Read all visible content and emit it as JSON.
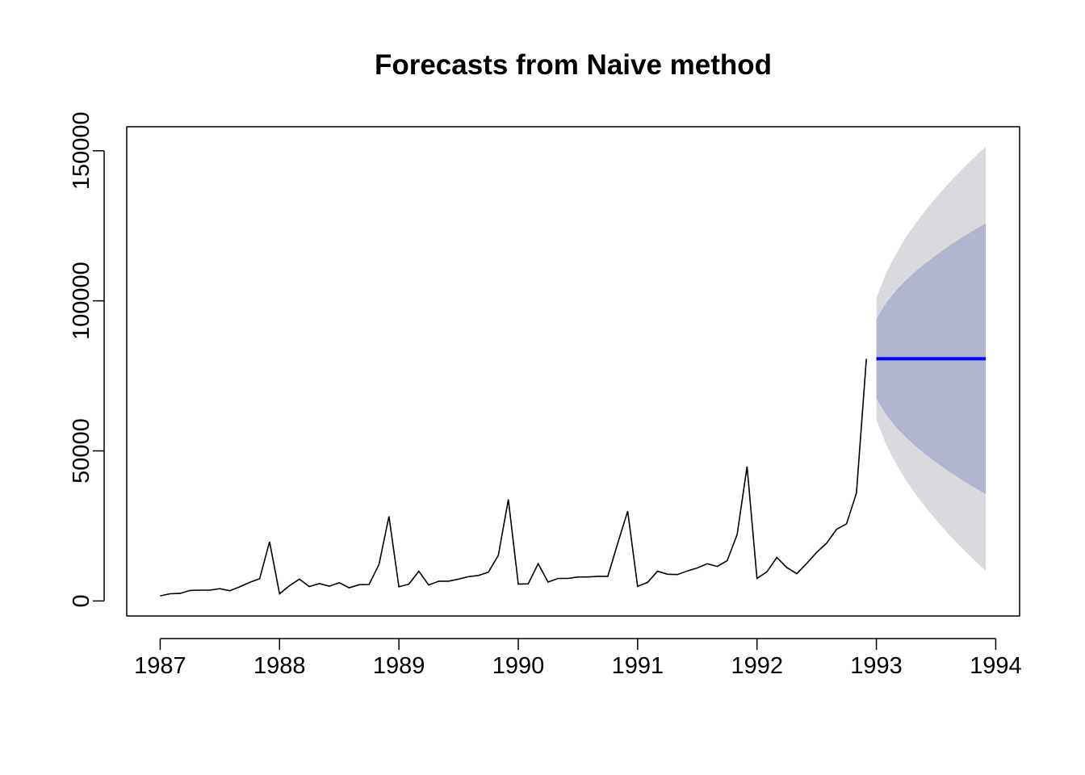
{
  "chart_data": {
    "type": "line",
    "title": "Forecasts from Naive method",
    "xlabel": "",
    "ylabel": "",
    "xlim": [
      1986.72,
      1994.2
    ],
    "ylim": [
      -5000,
      158000
    ],
    "x_ticks": [
      1987,
      1988,
      1989,
      1990,
      1991,
      1992,
      1993,
      1994
    ],
    "x_tick_labels": [
      "1987",
      "1988",
      "1989",
      "1990",
      "1991",
      "1992",
      "1993",
      "1994"
    ],
    "y_ticks": [
      0,
      50000,
      100000,
      150000
    ],
    "y_tick_labels": [
      "0",
      "50000",
      "100000",
      "150000"
    ],
    "grid": false,
    "legend": "none",
    "colors": {
      "history": "#000000",
      "forecast": "#0000ff",
      "band80": "#b1b5cf",
      "band95": "#dadade"
    },
    "series": [
      {
        "role": "history",
        "x_start": 1987.0,
        "step": 0.08333333,
        "values": [
          1700,
          2400,
          2500,
          3500,
          3600,
          3600,
          4100,
          3400,
          4700,
          6200,
          7400,
          19700,
          2400,
          5100,
          7300,
          4800,
          5800,
          4900,
          6100,
          4400,
          5400,
          5500,
          12200,
          28200,
          4700,
          5600,
          9900,
          5300,
          6600,
          6600,
          7300,
          8100,
          8500,
          9600,
          15200,
          33800,
          5600,
          5700,
          12400,
          6300,
          7500,
          7500,
          8000,
          8000,
          8200,
          8200,
          19200,
          29900,
          4900,
          6200,
          9900,
          8900,
          8800,
          10000,
          11000,
          12400,
          11500,
          13400,
          22100,
          44800,
          7500,
          9700,
          14500,
          11100,
          9100,
          12500,
          16200,
          19300,
          23900,
          25700,
          36000,
          80700
        ]
      },
      {
        "role": "forecast",
        "x_start": 1993.0,
        "step": 0.08333333,
        "values": [
          80700,
          80700,
          80700,
          80700,
          80700,
          80700,
          80700,
          80700,
          80700,
          80700,
          80700,
          80700
        ],
        "lo80": [
          67500,
          62000,
          57900,
          54500,
          51400,
          48700,
          46200,
          43800,
          41600,
          39500,
          37500,
          35600
        ],
        "hi80": [
          93900,
          99400,
          103500,
          106900,
          110000,
          112700,
          115200,
          117600,
          119800,
          121900,
          123900,
          125800
        ],
        "lo95": [
          60400,
          52000,
          45600,
          40100,
          35300,
          31000,
          27000,
          23200,
          19700,
          16300,
          13100,
          10000
        ],
        "hi95": [
          101000,
          109400,
          115800,
          121300,
          126100,
          130400,
          134400,
          138200,
          141700,
          145100,
          148300,
          151400
        ]
      }
    ]
  }
}
